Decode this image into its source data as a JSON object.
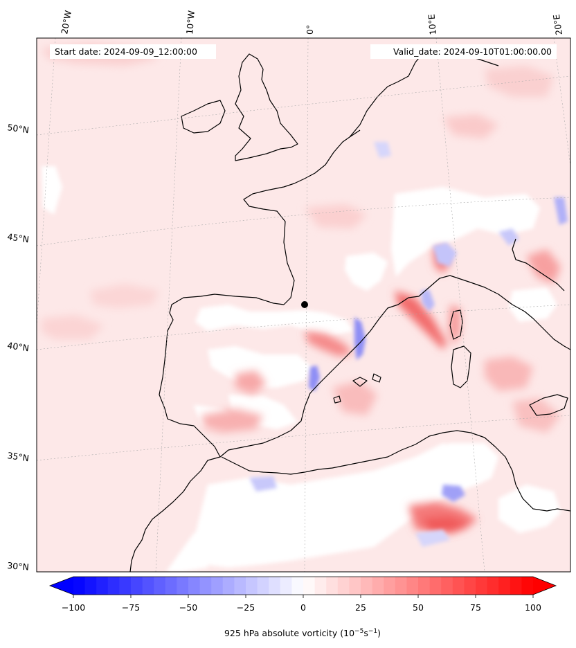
{
  "map": {
    "start_label": "Start date: 2024-09-09_12:00:00",
    "valid_label": "Valid_date: 2024-09-10T01:00:00.00",
    "longitude_labels": [
      "20°W",
      "10°W",
      "0°",
      "10°E",
      "20°E"
    ],
    "latitude_labels": [
      "50°N",
      "45°N",
      "40°N",
      "35°N",
      "30°N"
    ],
    "colors": {
      "negative": "#0000ff",
      "positive": "#ff0000",
      "coastline": "#000000",
      "background_tint": "#fde6e6"
    }
  },
  "colorbar": {
    "ticks": [
      "−100",
      "−75",
      "−50",
      "−25",
      "0",
      "25",
      "50",
      "75",
      "100"
    ],
    "label": "925 hPa absolute vorticity (10",
    "label_exp1": "−5",
    "label_mid": "s",
    "label_exp2": "−1",
    "label_end": ")"
  }
}
